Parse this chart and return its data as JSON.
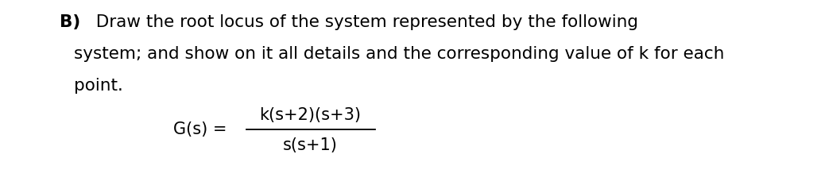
{
  "background_color": "#ffffff",
  "bold_label": "B)",
  "line1": "  Draw the root locus of the system represented by the following",
  "line2": "system; and show on it all details and the corresponding value of k for each",
  "line3": "point.",
  "numerator": "k(s+2)(s+3)",
  "denominator": "s(s+1)",
  "gs_equal": "G(s) =",
  "text_color": "#000000",
  "main_fontsize": 15.5,
  "formula_fontsize": 15,
  "bold_fontsize": 15.5,
  "fig_width": 10.38,
  "fig_height": 2.33,
  "dpi": 100
}
